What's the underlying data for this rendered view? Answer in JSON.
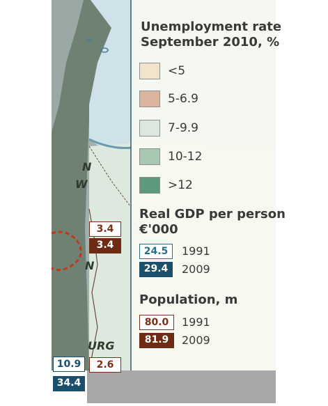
{
  "legend": {
    "unemployment": {
      "title_line1": "Unemployment rate",
      "title_line2": "September 2010, %",
      "classes": [
        {
          "label": "<5",
          "color": "#f2e3cc"
        },
        {
          "label": "5-6.9",
          "color": "#dcb5a0"
        },
        {
          "label": "7-9.9",
          "color": "#dce8de"
        },
        {
          "label": "10-12",
          "color": "#a9c8b1"
        },
        {
          "label": ">12",
          "color": "#5d9a7c"
        }
      ]
    },
    "gdp": {
      "title_line1": "Real GDP per person",
      "title_line2": "€'000",
      "items": [
        {
          "value": "24.5",
          "year": "1991"
        },
        {
          "value": "29.4",
          "year": "2009"
        }
      ],
      "colors": {
        "outline": "#2a6f8a",
        "fill": "#1b4f6b"
      }
    },
    "population": {
      "title": "Population, m",
      "items": [
        {
          "value": "80.0",
          "year": "1991"
        },
        {
          "value": "81.9",
          "year": "2009"
        }
      ],
      "colors": {
        "outline": "#7a2f16",
        "fill": "#6e2b14"
      }
    }
  },
  "map": {
    "letters": [
      "N",
      "W",
      "N",
      "URG"
    ],
    "labels": {
      "region_pop_1991": "3.4",
      "region_pop_2009": "3.4",
      "bottom_gdp_1991": "10.9",
      "bottom_pop": "2.6",
      "bottom_gdp_2009": "34.4"
    }
  }
}
